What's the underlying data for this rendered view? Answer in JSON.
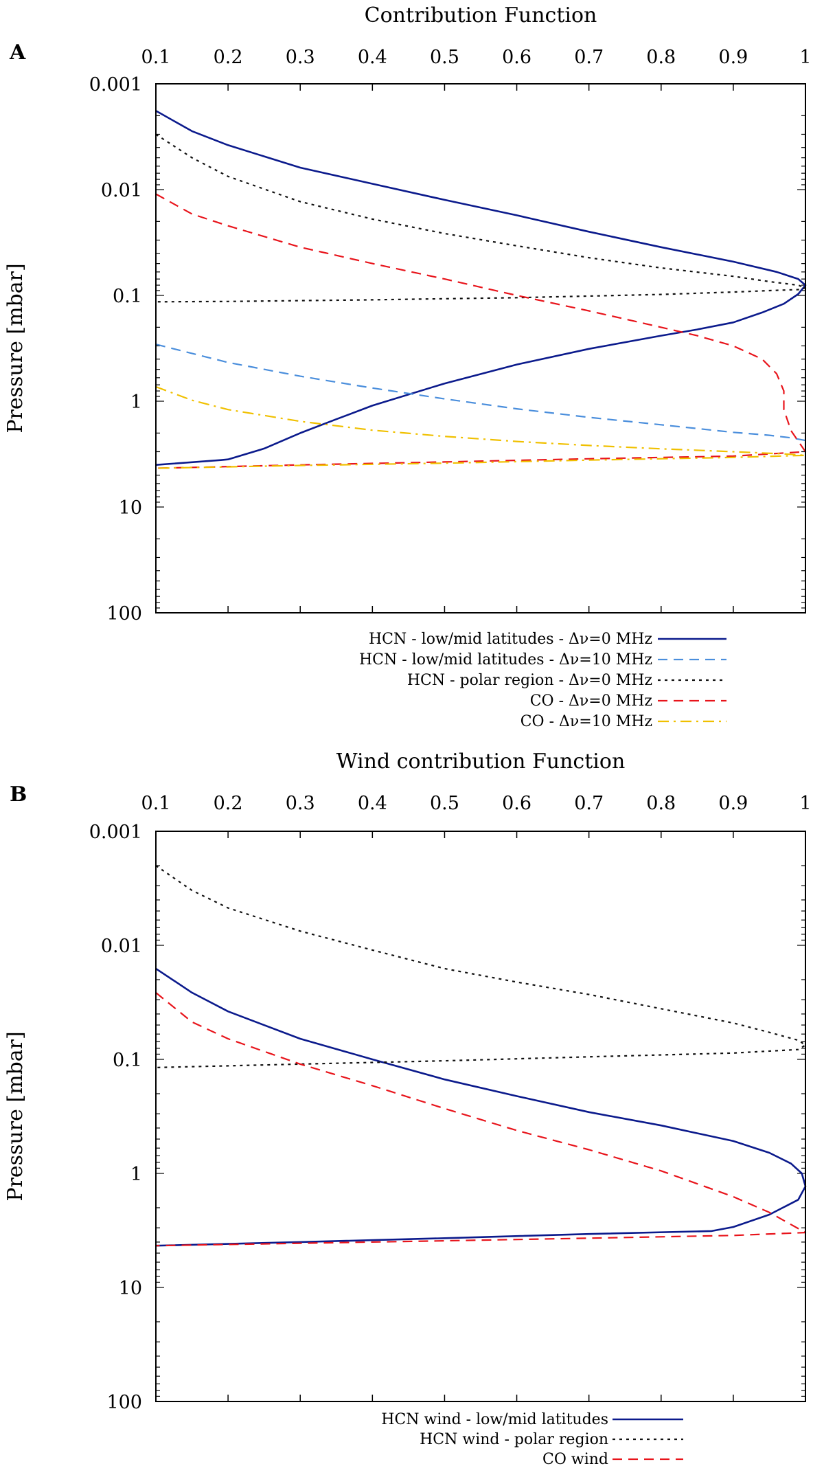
{
  "chart_data": [
    {
      "panel": "A",
      "type": "line",
      "title": "Contribution Function",
      "xlabel": "Contribution Function",
      "ylabel": "Pressure [mbar]",
      "x_axis_position": "top",
      "xlim": [
        0.1,
        1
      ],
      "ylim": [
        0.001,
        100
      ],
      "y_scale": "log",
      "y_inverted": true,
      "xticks": [
        "0.1",
        "0.2",
        "0.3",
        "0.4",
        "0.5",
        "0.6",
        "0.7",
        "0.8",
        "0.9",
        "1"
      ],
      "yticks": [
        "0.001",
        "0.01",
        "0.1",
        "1",
        "10",
        "100"
      ],
      "grid": false,
      "legend_position": "bottom",
      "series": [
        {
          "name": "HCN - low/mid latitudes - Δν=0 MHz",
          "color": "#0b1a8c",
          "dash": "solid",
          "x": [
            0.1,
            0.15,
            0.2,
            0.3,
            0.4,
            0.5,
            0.6,
            0.7,
            0.8,
            0.9,
            0.96,
            0.99,
            1.0,
            0.99,
            0.97,
            0.94,
            0.9,
            0.85,
            0.8,
            0.7,
            0.6,
            0.5,
            0.4,
            0.35,
            0.3,
            0.25,
            0.2,
            0.19,
            0.1
          ],
          "y": [
            0.0018,
            0.0028,
            0.0038,
            0.0062,
            0.0088,
            0.0125,
            0.0175,
            0.025,
            0.035,
            0.048,
            0.06,
            0.07,
            0.08,
            0.097,
            0.12,
            0.145,
            0.18,
            0.21,
            0.24,
            0.32,
            0.45,
            0.68,
            1.1,
            1.48,
            2.0,
            2.8,
            3.55,
            3.6,
            4.0
          ]
        },
        {
          "name": "HCN - low/mid latitudes - Δν=10 MHz",
          "color": "#4a8edc",
          "dash": "dashed",
          "x": [
            0.1,
            0.2,
            0.3,
            0.4,
            0.5,
            0.6,
            0.7,
            0.8,
            0.9,
            0.95,
            0.98,
            1.0
          ],
          "y": [
            0.29,
            0.43,
            0.58,
            0.75,
            0.95,
            1.18,
            1.42,
            1.67,
            1.97,
            2.1,
            2.22,
            2.35
          ]
        },
        {
          "name": "HCN - polar region - Δν=0 MHz",
          "color": "#111111",
          "dash": "dotted",
          "x": [
            0.1,
            0.15,
            0.2,
            0.3,
            0.4,
            0.5,
            0.6,
            0.7,
            0.8,
            0.9,
            0.95,
            0.99,
            1.0,
            0.99,
            0.95,
            0.9,
            0.8,
            0.6,
            0.4,
            0.2,
            0.1
          ],
          "y": [
            0.003,
            0.005,
            0.0075,
            0.013,
            0.019,
            0.026,
            0.034,
            0.044,
            0.055,
            0.066,
            0.074,
            0.08,
            0.085,
            0.088,
            0.09,
            0.093,
            0.098,
            0.105,
            0.11,
            0.114,
            0.115
          ]
        },
        {
          "name": "CO - Δν=0 MHz",
          "color": "#e8141b",
          "dash": "dashed",
          "x": [
            0.1,
            0.15,
            0.2,
            0.3,
            0.4,
            0.5,
            0.6,
            0.7,
            0.8,
            0.85,
            0.9,
            0.94,
            0.96,
            0.97,
            0.97,
            0.98,
            1.0,
            0.9,
            0.7,
            0.5,
            0.3,
            0.1
          ],
          "y": [
            0.011,
            0.017,
            0.022,
            0.035,
            0.05,
            0.07,
            0.1,
            0.14,
            0.2,
            0.24,
            0.3,
            0.4,
            0.55,
            0.8,
            1.2,
            1.9,
            3.0,
            3.3,
            3.5,
            3.75,
            4.0,
            4.3
          ]
        },
        {
          "name": "CO - Δν=10 MHz",
          "color": "#f0c000",
          "dash": "dashdot",
          "x": [
            0.1,
            0.15,
            0.2,
            0.3,
            0.4,
            0.5,
            0.6,
            0.7,
            0.8,
            0.9,
            0.97,
            1.0,
            0.9,
            0.7,
            0.5,
            0.3,
            0.1
          ],
          "y": [
            0.73,
            0.98,
            1.2,
            1.55,
            1.88,
            2.15,
            2.4,
            2.62,
            2.82,
            3.0,
            3.15,
            3.25,
            3.4,
            3.6,
            3.85,
            4.05,
            4.3
          ]
        }
      ]
    },
    {
      "panel": "B",
      "type": "line",
      "title": "Wind contribution Function",
      "xlabel": "Wind contribution Function",
      "ylabel": "Pressure [mbar]",
      "x_axis_position": "top",
      "xlim": [
        0.1,
        1
      ],
      "ylim": [
        0.001,
        100
      ],
      "y_scale": "log",
      "y_inverted": true,
      "xticks": [
        "0.1",
        "0.2",
        "0.3",
        "0.4",
        "0.5",
        "0.6",
        "0.7",
        "0.8",
        "0.9",
        "1"
      ],
      "yticks": [
        "0.001",
        "0.01",
        "0.1",
        "1",
        "10",
        "100"
      ],
      "grid": false,
      "legend_position": "bottom",
      "series": [
        {
          "name": "HCN wind - low/mid latitudes",
          "color": "#0b1a8c",
          "dash": "solid",
          "x": [
            0.1,
            0.15,
            0.2,
            0.3,
            0.4,
            0.5,
            0.6,
            0.7,
            0.8,
            0.9,
            0.95,
            0.98,
            0.995,
            1.0,
            0.99,
            0.95,
            0.9,
            0.87,
            0.7,
            0.5,
            0.3,
            0.1
          ],
          "y": [
            0.016,
            0.026,
            0.038,
            0.066,
            0.1,
            0.15,
            0.21,
            0.29,
            0.38,
            0.52,
            0.66,
            0.82,
            1.0,
            1.3,
            1.7,
            2.3,
            2.95,
            3.2,
            3.4,
            3.7,
            4.0,
            4.3
          ]
        },
        {
          "name": "HCN wind - polar region",
          "color": "#111111",
          "dash": "dotted",
          "x": [
            0.1,
            0.15,
            0.2,
            0.3,
            0.4,
            0.5,
            0.6,
            0.7,
            0.8,
            0.9,
            0.95,
            0.99,
            1.0,
            0.99,
            0.9,
            0.7,
            0.5,
            0.3,
            0.1
          ],
          "y": [
            0.002,
            0.0033,
            0.0047,
            0.0075,
            0.011,
            0.016,
            0.021,
            0.027,
            0.036,
            0.048,
            0.058,
            0.068,
            0.075,
            0.082,
            0.088,
            0.095,
            0.103,
            0.11,
            0.118
          ]
        },
        {
          "name": "CO wind",
          "color": "#e8141b",
          "dash": "dashed",
          "x": [
            0.1,
            0.15,
            0.2,
            0.3,
            0.4,
            0.5,
            0.6,
            0.7,
            0.8,
            0.9,
            0.95,
            1.0,
            0.9,
            0.7,
            0.5,
            0.3,
            0.1
          ],
          "y": [
            0.026,
            0.047,
            0.066,
            0.11,
            0.17,
            0.27,
            0.42,
            0.62,
            0.95,
            1.6,
            2.2,
            3.3,
            3.5,
            3.7,
            3.9,
            4.1,
            4.3
          ]
        }
      ]
    }
  ]
}
